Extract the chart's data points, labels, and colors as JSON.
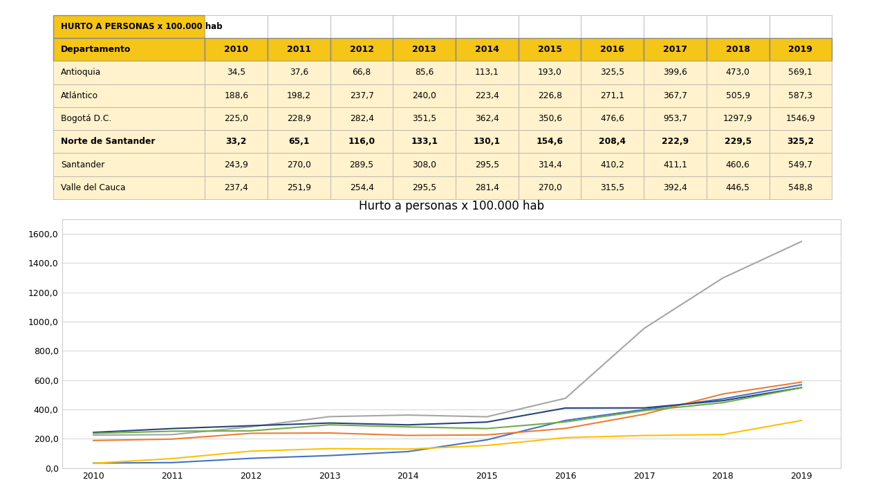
{
  "title_table": "HURTO A PERSONAS x 100.000 hab",
  "chart_title": "Hurto a personas x 100.000 hab",
  "years": [
    2010,
    2011,
    2012,
    2013,
    2014,
    2015,
    2016,
    2017,
    2018,
    2019
  ],
  "departments": [
    "Antioquia",
    "Atlántico",
    "Bogotá D.C.",
    "Norte de Santander",
    "Santander",
    "Valle del Cauca"
  ],
  "data": {
    "Antioquia": [
      34.5,
      37.6,
      66.8,
      85.6,
      113.1,
      193.0,
      325.5,
      399.6,
      473.0,
      569.1
    ],
    "Atlántico": [
      188.6,
      198.2,
      237.7,
      240.0,
      223.4,
      226.8,
      271.1,
      367.7,
      505.9,
      587.3
    ],
    "Bogotá D.C.": [
      225.0,
      228.9,
      282.4,
      351.5,
      362.4,
      350.6,
      476.6,
      953.7,
      1297.9,
      1546.9
    ],
    "Norte de Santander": [
      33.2,
      65.1,
      116.0,
      133.1,
      130.1,
      154.6,
      208.4,
      222.9,
      229.5,
      325.2
    ],
    "Santander": [
      243.9,
      270.0,
      289.5,
      308.0,
      295.5,
      314.4,
      410.2,
      411.1,
      460.6,
      549.7
    ],
    "Valle del Cauca": [
      237.4,
      251.9,
      254.4,
      295.5,
      281.4,
      270.0,
      315.5,
      392.4,
      446.5,
      548.8
    ]
  },
  "data_display": {
    "Antioquia": [
      "34,5",
      "37,6",
      "66,8",
      "85,6",
      "113,1",
      "193,0",
      "325,5",
      "399,6",
      "473,0",
      "569,1"
    ],
    "Atlántico": [
      "188,6",
      "198,2",
      "237,7",
      "240,0",
      "223,4",
      "226,8",
      "271,1",
      "367,7",
      "505,9",
      "587,3"
    ],
    "Bogotá D.C.": [
      "225,0",
      "228,9",
      "282,4",
      "351,5",
      "362,4",
      "350,6",
      "476,6",
      "953,7",
      "1297,9",
      "1546,9"
    ],
    "Norte de Santander": [
      "33,2",
      "65,1",
      "116,0",
      "133,1",
      "130,1",
      "154,6",
      "208,4",
      "222,9",
      "229,5",
      "325,2"
    ],
    "Santander": [
      "243,9",
      "270,0",
      "289,5",
      "308,0",
      "295,5",
      "314,4",
      "410,2",
      "411,1",
      "460,6",
      "549,7"
    ],
    "Valle del Cauca": [
      "237,4",
      "251,9",
      "254,4",
      "295,5",
      "281,4",
      "270,0",
      "315,5",
      "392,4",
      "446,5",
      "548,8"
    ]
  },
  "line_colors": {
    "Antioquia": "#4472C4",
    "Atlántico": "#ED7D31",
    "Bogotá D.C.": "#A5A5A5",
    "Norte de Santander": "#FFC000",
    "Santander": "#264478",
    "Valle del Cauca": "#70AD47"
  },
  "bold_rows": [
    "Norte de Santander"
  ],
  "header_bg": "#F5C518",
  "subheader_bg": "#F5C518",
  "data_bg": "#FFF2CC",
  "yticks": [
    0.0,
    200.0,
    400.0,
    600.0,
    800.0,
    1000.0,
    1200.0,
    1400.0,
    1600.0
  ],
  "ytick_labels": [
    "0,0",
    "200,0",
    "400,0",
    "600,0",
    "800,0",
    "1000,0",
    "1200,0",
    "1400,0",
    "1600,0"
  ],
  "ylim": [
    0,
    1700
  ],
  "chart_bg": "#FFFFFF",
  "outer_bg": "#FFFFFF",
  "chart_border_color": "#CCCCCC",
  "grid_color": "#D9D9D9"
}
